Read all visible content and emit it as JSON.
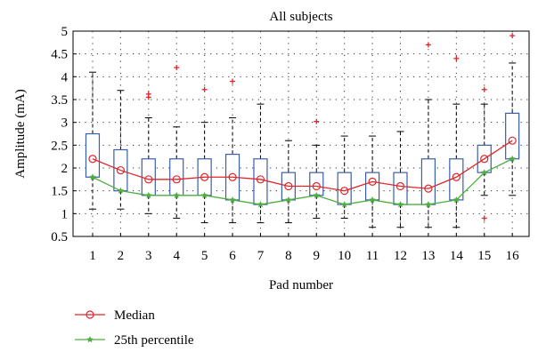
{
  "chart_data": {
    "type": "box",
    "title": "All subjects",
    "xlabel": "Pad number",
    "ylabel": "Amplitude (mA)",
    "ylim": [
      0.5,
      5
    ],
    "xlim": [
      0.3,
      16.6
    ],
    "yticks": [
      "0.5",
      "1",
      "1.5",
      "2",
      "2.5",
      "3",
      "3.5",
      "4",
      "4.5",
      "5"
    ],
    "categories": [
      "1",
      "2",
      "3",
      "4",
      "5",
      "6",
      "7",
      "8",
      "9",
      "10",
      "11",
      "12",
      "13",
      "14",
      "15",
      "16"
    ],
    "grid": true,
    "legend_position": "bottom-left",
    "boxes": [
      {
        "q1": 1.8,
        "median": 2.2,
        "q3": 2.75,
        "whisker_low": 1.1,
        "whisker_high": 4.1,
        "outliers": []
      },
      {
        "q1": 1.5,
        "median": 1.95,
        "q3": 2.4,
        "whisker_low": 1.1,
        "whisker_high": 3.7,
        "outliers": []
      },
      {
        "q1": 1.4,
        "median": 1.75,
        "q3": 2.2,
        "whisker_low": 1.0,
        "whisker_high": 3.1,
        "outliers": [
          3.55,
          3.62
        ]
      },
      {
        "q1": 1.4,
        "median": 1.75,
        "q3": 2.2,
        "whisker_low": 0.9,
        "whisker_high": 2.9,
        "outliers": [
          4.2
        ]
      },
      {
        "q1": 1.4,
        "median": 1.8,
        "q3": 2.2,
        "whisker_low": 0.8,
        "whisker_high": 3.0,
        "outliers": [
          3.72
        ]
      },
      {
        "q1": 1.3,
        "median": 1.8,
        "q3": 2.3,
        "whisker_low": 0.8,
        "whisker_high": 3.1,
        "outliers": [
          3.9
        ]
      },
      {
        "q1": 1.2,
        "median": 1.75,
        "q3": 2.2,
        "whisker_low": 0.8,
        "whisker_high": 3.4,
        "outliers": []
      },
      {
        "q1": 1.3,
        "median": 1.6,
        "q3": 1.9,
        "whisker_low": 0.8,
        "whisker_high": 2.6,
        "outliers": []
      },
      {
        "q1": 1.4,
        "median": 1.6,
        "q3": 1.9,
        "whisker_low": 0.9,
        "whisker_high": 2.5,
        "outliers": [
          3.02
        ]
      },
      {
        "q1": 1.2,
        "median": 1.5,
        "q3": 1.9,
        "whisker_low": 0.9,
        "whisker_high": 2.7,
        "outliers": []
      },
      {
        "q1": 1.3,
        "median": 1.7,
        "q3": 1.9,
        "whisker_low": 0.7,
        "whisker_high": 2.7,
        "outliers": []
      },
      {
        "q1": 1.2,
        "median": 1.6,
        "q3": 1.9,
        "whisker_low": 0.7,
        "whisker_high": 2.8,
        "outliers": []
      },
      {
        "q1": 1.2,
        "median": 1.55,
        "q3": 2.2,
        "whisker_low": 0.7,
        "whisker_high": 3.5,
        "outliers": [
          4.7
        ]
      },
      {
        "q1": 1.3,
        "median": 1.8,
        "q3": 2.2,
        "whisker_low": 0.7,
        "whisker_high": 3.4,
        "outliers": [
          4.4
        ]
      },
      {
        "q1": 1.9,
        "median": 2.2,
        "q3": 2.5,
        "whisker_low": 1.4,
        "whisker_high": 3.4,
        "outliers": [
          3.72,
          0.9
        ]
      },
      {
        "q1": 2.2,
        "median": 2.6,
        "q3": 3.2,
        "whisker_low": 1.4,
        "whisker_high": 4.3,
        "outliers": [
          4.9
        ]
      }
    ],
    "series": [
      {
        "name": "Median",
        "color": "#e0262b",
        "marker": "circle",
        "values": [
          2.2,
          1.95,
          1.75,
          1.75,
          1.8,
          1.8,
          1.75,
          1.6,
          1.6,
          1.5,
          1.7,
          1.6,
          1.55,
          1.8,
          2.2,
          2.6
        ]
      },
      {
        "name": "25th percentile",
        "color": "#4caf3e",
        "marker": "star",
        "values": [
          1.8,
          1.5,
          1.4,
          1.4,
          1.4,
          1.3,
          1.2,
          1.3,
          1.4,
          1.2,
          1.3,
          1.2,
          1.2,
          1.3,
          1.9,
          2.2
        ]
      }
    ],
    "colors": {
      "box": "#3a5fa8",
      "whisker": "#000000",
      "outlier": "#e0262b",
      "grid": "#333333"
    }
  }
}
